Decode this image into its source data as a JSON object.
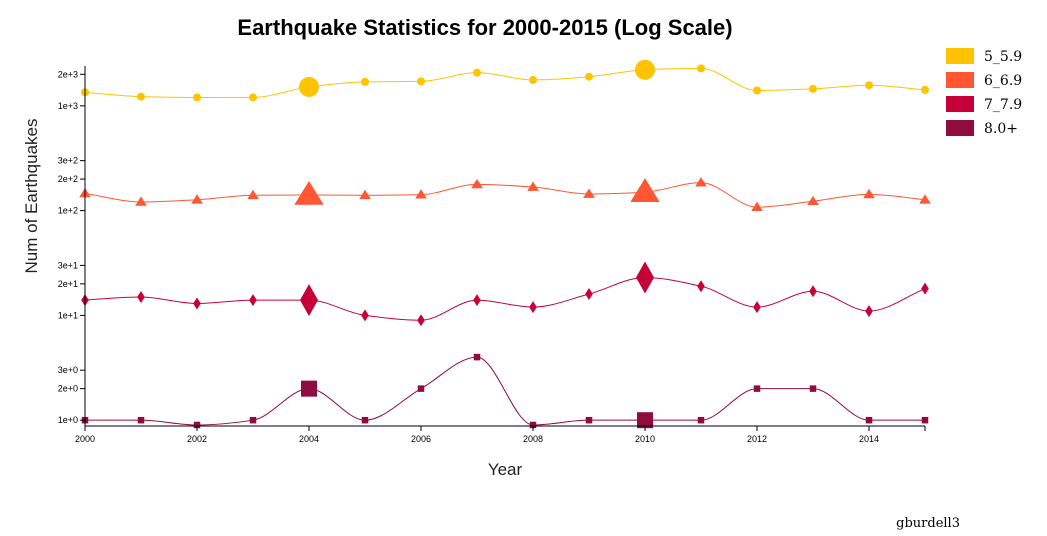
{
  "chart_data": {
    "type": "line",
    "title": "Earthquake Statistics for 2000-2015 (Log Scale)",
    "xlabel": "Year",
    "ylabel": "Num of Earthquakes",
    "yscale": "log",
    "x": [
      2000,
      2001,
      2002,
      2003,
      2004,
      2005,
      2006,
      2007,
      2008,
      2009,
      2010,
      2011,
      2012,
      2013,
      2014,
      2015
    ],
    "xlim": [
      2000,
      2015
    ],
    "xticks": [
      2000,
      2002,
      2004,
      2006,
      2008,
      2010,
      2012,
      2014
    ],
    "yticks": [
      {
        "value": 1,
        "label": "1e+0"
      },
      {
        "value": 2,
        "label": "2e+0"
      },
      {
        "value": 3,
        "label": "3e+0"
      },
      {
        "value": 10,
        "label": "1e+1"
      },
      {
        "value": 20,
        "label": "2e+1"
      },
      {
        "value": 30,
        "label": "3e+1"
      },
      {
        "value": 100,
        "label": "1e+2"
      },
      {
        "value": 200,
        "label": "2e+2"
      },
      {
        "value": 300,
        "label": "3e+2"
      },
      {
        "value": 1000,
        "label": "1e+3"
      },
      {
        "value": 2000,
        "label": "2e+3"
      }
    ],
    "highlight_years": [
      2004,
      2010
    ],
    "legend_position": "top-right",
    "series": [
      {
        "name": "5_5.9",
        "color": "#FFC300",
        "symbol": "circle",
        "values": [
          1344,
          1224,
          1201,
          1203,
          1515,
          1693,
          1712,
          2074,
          1768,
          1896,
          2209,
          2276,
          1401,
          1453,
          1574,
          1419
        ]
      },
      {
        "name": "6_6.9",
        "color": "#FF5733",
        "symbol": "triangle",
        "values": [
          146,
          121,
          127,
          140,
          141,
          140,
          142,
          178,
          168,
          144,
          150,
          185,
          108,
          123,
          143,
          127
        ]
      },
      {
        "name": "7_7.9",
        "color": "#C70039",
        "symbol": "diamond",
        "values": [
          14,
          15,
          13,
          14,
          14,
          10,
          9,
          14,
          12,
          16,
          23,
          19,
          12,
          17,
          11,
          18
        ]
      },
      {
        "name": "8.0+",
        "color": "#900C3F",
        "symbol": "square",
        "values": [
          1,
          1,
          0.9,
          1,
          2,
          1,
          2,
          4,
          0.9,
          1,
          1,
          1,
          2,
          2,
          1,
          1
        ]
      }
    ]
  },
  "author": "gburdell3"
}
